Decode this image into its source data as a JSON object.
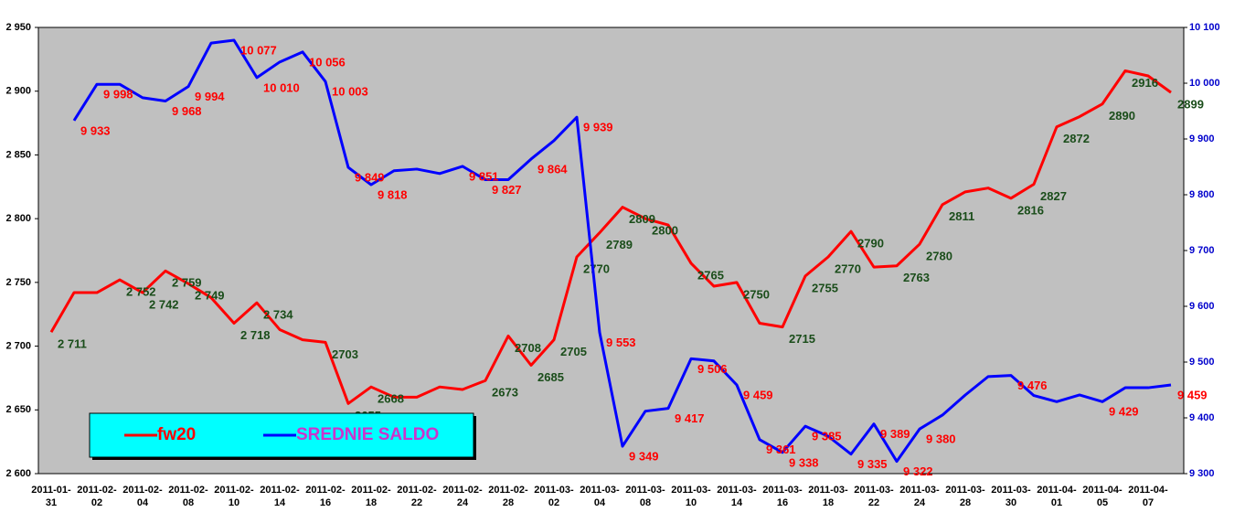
{
  "chart_data": {
    "type": "line",
    "categories": [
      [
        "2011-01-",
        "31"
      ],
      null,
      [
        "2011-02-",
        "02"
      ],
      null,
      [
        "2011-02-",
        "04"
      ],
      null,
      [
        "2011-02-",
        "08"
      ],
      null,
      [
        "2011-02-",
        "10"
      ],
      null,
      [
        "2011-02-",
        "14"
      ],
      null,
      [
        "2011-02-",
        "16"
      ],
      null,
      [
        "2011-02-",
        "18"
      ],
      null,
      [
        "2011-02-",
        "22"
      ],
      null,
      [
        "2011-02-",
        "24"
      ],
      null,
      [
        "2011-02-",
        "28"
      ],
      null,
      [
        "2011-03-",
        "02"
      ],
      null,
      [
        "2011-03-",
        "04"
      ],
      null,
      [
        "2011-03-",
        "08"
      ],
      null,
      [
        "2011-03-",
        "10"
      ],
      null,
      [
        "2011-03-",
        "14"
      ],
      null,
      [
        "2011-03-",
        "16"
      ],
      null,
      [
        "2011-03-",
        "18"
      ],
      null,
      [
        "2011-03-",
        "22"
      ],
      null,
      [
        "2011-03-",
        "24"
      ],
      null,
      [
        "2011-03-",
        "28"
      ],
      null,
      [
        "2011-03-",
        "30"
      ],
      null,
      [
        "2011-04-",
        "01"
      ],
      null,
      [
        "2011-04-",
        "05"
      ],
      null,
      [
        "2011-04-",
        "07"
      ],
      null
    ],
    "series": [
      {
        "name": "fw20",
        "color": "#ff0000",
        "axis": "y",
        "values": [
          2711,
          2742,
          2742,
          2752,
          2742,
          2759,
          2749,
          2738,
          2718,
          2734,
          2713,
          2705,
          2703,
          2655,
          2668,
          2660,
          2660,
          2668,
          2666,
          2673,
          2708,
          2685,
          2705,
          2770,
          2789,
          2809,
          2800,
          2795,
          2765,
          2747,
          2750,
          2718,
          2715,
          2755,
          2770,
          2790,
          2762,
          2763,
          2780,
          2811,
          2821,
          2824,
          2816,
          2827,
          2872,
          2880,
          2890,
          2916,
          2912,
          2899
        ],
        "value_labels": [
          "2 711",
          null,
          null,
          "2 752",
          "2 742",
          "2 759",
          "2 749",
          null,
          "2 718",
          "2 734",
          null,
          null,
          "2703",
          "2655",
          "2668",
          null,
          null,
          null,
          null,
          "2673",
          "2708",
          "2685",
          "2705",
          "2770",
          "2789",
          "2809",
          "2800",
          null,
          "2765",
          null,
          "2750",
          null,
          "2715",
          "2755",
          "2770",
          "2790",
          null,
          "2763",
          "2780",
          "2811",
          null,
          null,
          "2816",
          "2827",
          "2872",
          null,
          "2890",
          "2916",
          null,
          "2899"
        ]
      },
      {
        "name": "SREDNIE SALDO",
        "color": "#0000ff",
        "axis": "y2",
        "values": [
          null,
          9933,
          9998,
          9998,
          9974,
          9968,
          9994,
          10072,
          10077,
          10010,
          10038,
          10056,
          10003,
          9849,
          9818,
          9843,
          9846,
          9838,
          9851,
          9827,
          9827,
          9864,
          9897,
          9939,
          9553,
          9349,
          9412,
          9417,
          9506,
          9502,
          9459,
          9361,
          9338,
          9385,
          9367,
          9335,
          9389,
          9322,
          9380,
          9405,
          9441,
          9474,
          9476,
          9440,
          9429,
          9441,
          9429,
          9454,
          9454,
          9459
        ],
        "value_labels": [
          null,
          "9 933",
          "9 998",
          null,
          null,
          "9 968",
          "9 994",
          null,
          "10 077",
          "10 010",
          null,
          "10 056",
          "10 003",
          "9 849",
          "9 818",
          null,
          null,
          null,
          "9 851",
          "9 827",
          null,
          "9 864",
          null,
          "9 939",
          "9 553",
          "9 349",
          null,
          "9 417",
          "9 506",
          null,
          "9 459",
          "9 361",
          "9 338",
          "9 385",
          null,
          "9 335",
          "9 389",
          "9 322",
          "9 380",
          null,
          null,
          null,
          "9 476",
          null,
          null,
          null,
          "9 429",
          null,
          null,
          "9 459"
        ]
      }
    ],
    "ylim": [
      2600,
      2950
    ],
    "yticks": [
      {
        "value": 2600,
        "label": "2 600"
      },
      {
        "value": 2650,
        "label": "2 650"
      },
      {
        "value": 2700,
        "label": "2 700"
      },
      {
        "value": 2750,
        "label": "2 750"
      },
      {
        "value": 2800,
        "label": "2 800"
      },
      {
        "value": 2850,
        "label": "2 850"
      },
      {
        "value": 2900,
        "label": "2 900"
      },
      {
        "value": 2950,
        "label": "2 950"
      }
    ],
    "y2lim": [
      9300,
      10100
    ],
    "y2ticks": [
      {
        "value": 9300,
        "label": "9 300"
      },
      {
        "value": 9400,
        "label": "9 400"
      },
      {
        "value": 9500,
        "label": "9 500"
      },
      {
        "value": 9600,
        "label": "9 600"
      },
      {
        "value": 9700,
        "label": "9 700"
      },
      {
        "value": 9800,
        "label": "9 800"
      },
      {
        "value": 9900,
        "label": "9 900"
      },
      {
        "value": 10000,
        "label": "10 000"
      },
      {
        "value": 10100,
        "label": "10 100"
      }
    ],
    "grid": false
  }
}
